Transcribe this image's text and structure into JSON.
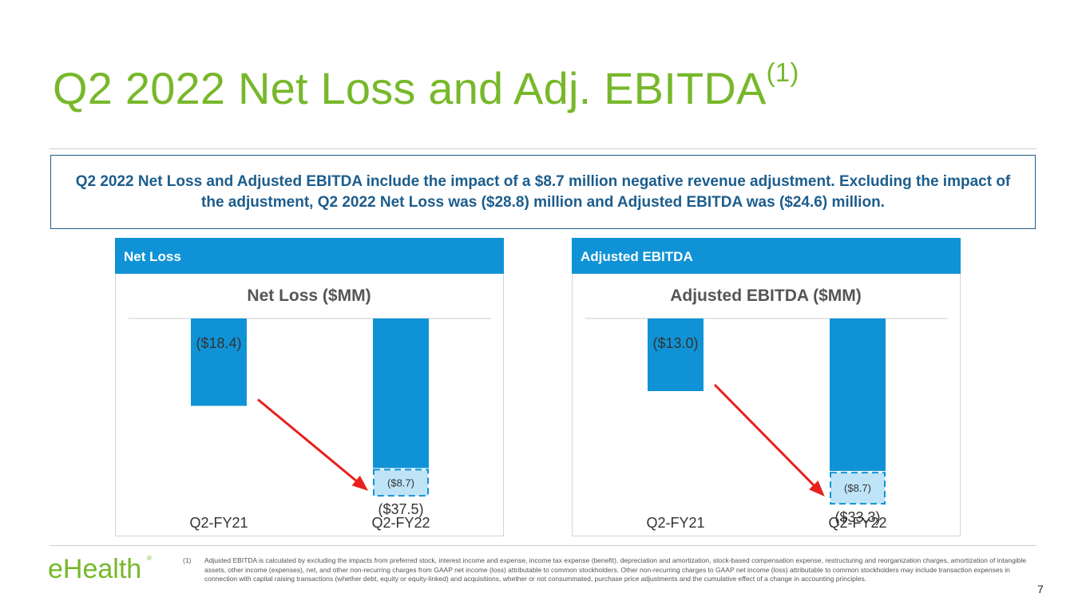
{
  "slide": {
    "title": "Q2 2022 Net Loss and Adj. EBITDA",
    "title_superscript": "(1)",
    "callout": "Q2 2022 Net Loss and Adjusted EBITDA include the impact of a $8.7 million negative revenue adjustment. Excluding the impact of the adjustment, Q2 2022 Net Loss was ($28.8) million and Adjusted EBITDA was ($24.6) million.",
    "footnote_number": "(1)",
    "footnote": "Adjusted EBITDA is calculated by excluding the impacts from preferred stock, interest income and expense, income tax expense (benefit), depreciation and amortization, stock-based compensation expense, restructuring and reorganization charges, amortization of intangible assets, other income (expenses), net, and other non-recurring charges from GAAP net income (loss) attributable to common stockholders. Other non-recurring charges to GAAP net income (loss) attributable to common stockholders may include transaction expenses in connection with capital raising transactions (whether debt, equity or equity-linked) and acquisitions, whether or not consummated, purchase price adjustments and the cumulative effect of a change in accounting principles.",
    "page_number": "7",
    "logo_text": "eHealth",
    "logo_mark": "®"
  },
  "colors": {
    "title_green": "#77b82a",
    "callout_blue": "#1c5d8c",
    "header_blue": "#1093d6",
    "bar_blue": "#1093d6",
    "adjustment_fill": "#bfe4f7",
    "adjustment_border": "#1093d6",
    "arrow_red": "#e8201e"
  },
  "chart_data": [
    {
      "type": "bar",
      "panel_label": "Net Loss",
      "title": "Net Loss ($MM)",
      "categories": [
        "Q2-FY21",
        "Q2-FY22"
      ],
      "values": [
        -18.4,
        -37.5
      ],
      "value_labels": [
        "($18.4)",
        "($37.5)"
      ],
      "adjustment": {
        "category": "Q2-FY22",
        "value": -8.7,
        "label": "($8.7)"
      },
      "ylim": [
        -40,
        0
      ],
      "annotation": "red arrow from Q2-FY21 bar to Q2-FY22 adjustment"
    },
    {
      "type": "bar",
      "panel_label": "Adjusted EBITDA",
      "title": "Adjusted EBITDA ($MM)",
      "categories": [
        "Q2-FY21",
        "Q2-FY22"
      ],
      "values": [
        -13.0,
        -33.3
      ],
      "value_labels": [
        "($13.0)",
        "($33.3)"
      ],
      "adjustment": {
        "category": "Q2-FY22",
        "value": -8.7,
        "label": "($8.7)"
      },
      "ylim": [
        -34,
        0
      ],
      "annotation": "red arrow from Q2-FY21 bar to Q2-FY22 adjustment"
    }
  ]
}
